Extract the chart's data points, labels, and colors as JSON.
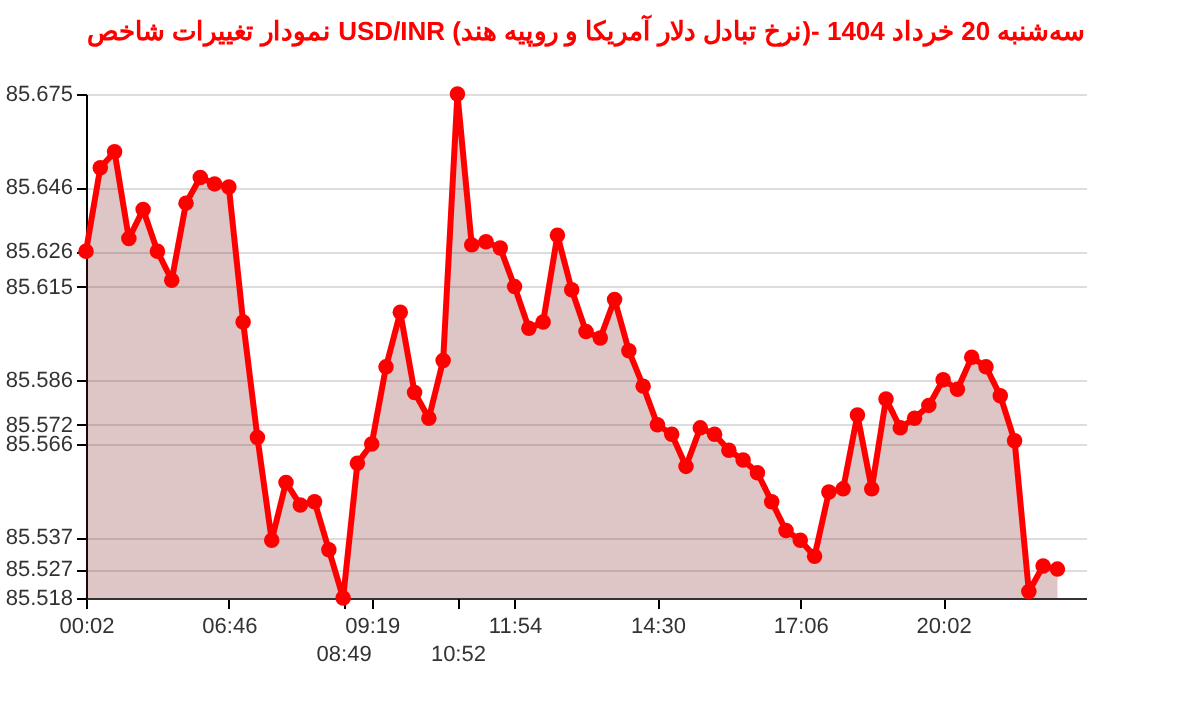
{
  "chart_data": {
    "type": "area",
    "title": "نمودار تغییرات شاخص USD/INR (نرخ تبادل دلار آمریکا و روپیه هند)- سه‌شنبه  20 خرداد 1404",
    "categories": [
      "00:02",
      null,
      null,
      null,
      null,
      null,
      null,
      null,
      null,
      null,
      "06:46",
      null,
      null,
      null,
      null,
      null,
      null,
      null,
      "08:49",
      null,
      "09:19",
      null,
      null,
      null,
      null,
      null,
      "10:52",
      null,
      null,
      null,
      "11:54",
      null,
      null,
      null,
      null,
      null,
      null,
      null,
      null,
      null,
      "14:30",
      null,
      null,
      null,
      null,
      null,
      null,
      null,
      null,
      null,
      "17:06",
      null,
      null,
      null,
      null,
      null,
      null,
      null,
      null,
      null,
      "20:02",
      null,
      null,
      null,
      null,
      null,
      null,
      null,
      null
    ],
    "series": [
      {
        "color": "#ff0000",
        "values": [
          85.626,
          85.652,
          85.657,
          85.63,
          85.639,
          85.626,
          85.617,
          85.641,
          85.649,
          85.647,
          85.646,
          85.604,
          85.568,
          85.536,
          85.554,
          85.547,
          85.548,
          85.533,
          85.518,
          85.56,
          85.566,
          85.59,
          85.607,
          85.582,
          85.574,
          85.592,
          85.675,
          85.628,
          85.629,
          85.627,
          85.615,
          85.602,
          85.604,
          85.631,
          85.614,
          85.601,
          85.599,
          85.611,
          85.595,
          85.584,
          85.572,
          85.569,
          85.559,
          85.571,
          85.569,
          85.564,
          85.561,
          85.557,
          85.548,
          85.539,
          85.536,
          85.531,
          85.551,
          85.552,
          85.575,
          85.552,
          85.58,
          85.571,
          85.574,
          85.578,
          85.586,
          85.583,
          85.593,
          85.59,
          85.581,
          85.567,
          85.52,
          85.528,
          85.527
        ]
      }
    ],
    "ylim": [
      85.518,
      85.675
    ],
    "yticks": [
      85.518,
      85.527,
      85.537,
      85.566,
      85.572,
      85.586,
      85.615,
      85.626,
      85.646,
      85.675
    ],
    "grid": "y",
    "marker": "circle",
    "line_style": "solid"
  }
}
